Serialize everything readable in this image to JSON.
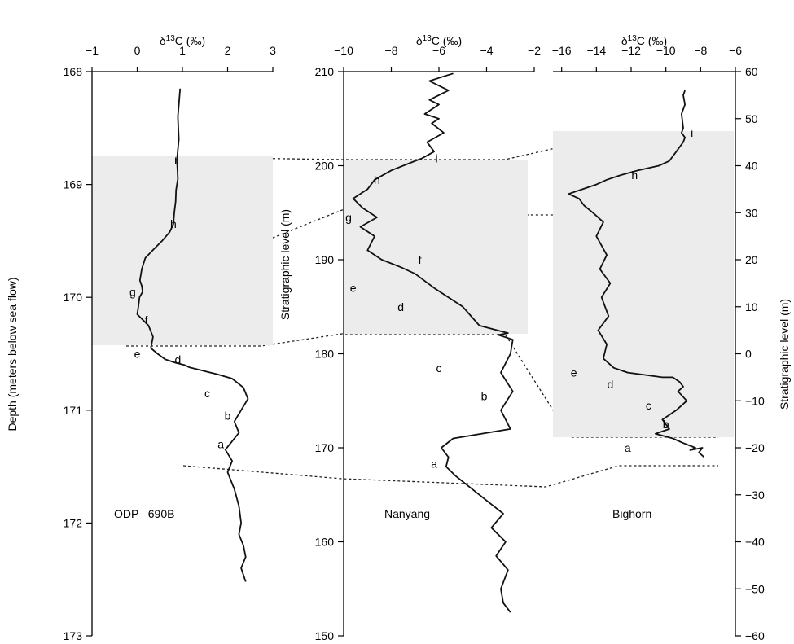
{
  "chart_data": [
    {
      "type": "line",
      "section_label": "ODP   690B",
      "xlabel": "δ13C (‰)",
      "ylabel": "Depth (meters below sea flow)",
      "xlim": [
        -1,
        3
      ],
      "ylim": [
        173,
        168
      ],
      "xticks": [
        -1,
        0,
        1,
        2,
        3
      ],
      "yticks": [
        168,
        169,
        170,
        171,
        172,
        173
      ],
      "band": [
        168.78,
        170.62
      ],
      "x": [
        0.95,
        0.9,
        0.92,
        0.88,
        0.9,
        0.86,
        0.85,
        0.82,
        0.8,
        0.72,
        0.55,
        0.35,
        0.18,
        0.1,
        0.06,
        0.1,
        0.12,
        0.05,
        0.02,
        0.0,
        0.25,
        0.35,
        0.3,
        0.45,
        0.62,
        0.85,
        1.05,
        1.15,
        1.45,
        1.75,
        2.1,
        2.35,
        2.45,
        2.3,
        2.15,
        2.25,
        2.05,
        1.95,
        2.1,
        2.0,
        2.15,
        2.25,
        2.3,
        2.25,
        2.35,
        2.4,
        2.3,
        2.4
      ],
      "y": [
        168.15,
        168.4,
        168.6,
        168.78,
        168.95,
        169.05,
        169.15,
        169.25,
        169.35,
        169.42,
        169.5,
        169.58,
        169.65,
        169.75,
        169.85,
        169.9,
        169.95,
        170.0,
        170.1,
        170.15,
        170.25,
        170.35,
        170.45,
        170.5,
        170.55,
        170.58,
        170.6,
        170.62,
        170.65,
        170.68,
        170.72,
        170.8,
        170.9,
        171.0,
        171.1,
        171.2,
        171.3,
        171.35,
        171.45,
        171.55,
        171.7,
        171.85,
        172.0,
        172.1,
        172.2,
        172.3,
        172.4,
        172.52
      ],
      "markers": [
        {
          "label": "i",
          "x": 0.85,
          "y": 168.78
        },
        {
          "label": "h",
          "x": 0.8,
          "y": 169.35
        },
        {
          "label": "g",
          "x": -0.1,
          "y": 169.95
        },
        {
          "label": "f",
          "x": 0.2,
          "y": 170.2
        },
        {
          "label": "e",
          "x": 0.0,
          "y": 170.5
        },
        {
          "label": "d",
          "x": 0.9,
          "y": 170.55
        },
        {
          "label": "c",
          "x": 1.55,
          "y": 170.85
        },
        {
          "label": "b",
          "x": 2.0,
          "y": 171.05
        },
        {
          "label": "a",
          "x": 1.85,
          "y": 171.3
        }
      ]
    },
    {
      "type": "line",
      "section_label": "Nanyang",
      "xlabel": "δ13C (‰)",
      "ylabel": "Stratigraphic level  (m)",
      "xlim": [
        -10,
        -2
      ],
      "ylim": [
        150,
        210
      ],
      "xticks": [
        -10,
        -8,
        -6,
        -4,
        -2
      ],
      "yticks": [
        150,
        160,
        170,
        180,
        190,
        200,
        210
      ],
      "band": [
        182,
        200.8
      ],
      "x": [
        -3.0,
        -3.3,
        -3.4,
        -3.1,
        -3.6,
        -3.2,
        -3.8,
        -3.3,
        -4.3,
        -4.8,
        -5.3,
        -5.7,
        -5.6,
        -5.9,
        -5.4,
        -3.0,
        -3.4,
        -2.9,
        -3.4,
        -3.0,
        -2.9,
        -3.5,
        -3.1,
        -4.3,
        -5.0,
        -6.2,
        -7.0,
        -7.6,
        -8.4,
        -9.0,
        -8.7,
        -9.3,
        -8.6,
        -9.2,
        -9.6,
        -9.0,
        -8.7,
        -8.0,
        -7.2,
        -6.7,
        -6.2,
        -6.5,
        -5.8,
        -6.3,
        -6.0,
        -6.6,
        -6.0,
        -6.4,
        -5.6,
        -6.4,
        -5.8,
        -5.4
      ],
      "y": [
        152.5,
        153.5,
        155,
        157,
        158.5,
        160,
        161.5,
        163,
        165,
        166,
        167,
        168,
        169,
        170,
        171,
        172,
        174,
        176,
        178,
        180,
        181.5,
        182,
        182.2,
        183,
        185,
        187,
        188.5,
        189.2,
        190,
        191,
        192.5,
        193.5,
        194.5,
        195.5,
        196.5,
        197.5,
        198.5,
        199.5,
        200.3,
        200.8,
        201.5,
        202.5,
        203.5,
        204.5,
        205,
        205.5,
        206.5,
        207,
        208,
        209,
        209.5,
        209.8
      ],
      "markers": [
        {
          "label": "i",
          "x": -6.1,
          "y": 200.8
        },
        {
          "label": "h",
          "x": -8.6,
          "y": 198.5
        },
        {
          "label": "g",
          "x": -10.0,
          "y": 194.5
        },
        {
          "label": "f",
          "x": -6.8,
          "y": 190.0
        },
        {
          "label": "e",
          "x": -9.6,
          "y": 187.0
        },
        {
          "label": "d",
          "x": -7.6,
          "y": 185.0
        },
        {
          "label": "c",
          "x": -6.0,
          "y": 178.5
        },
        {
          "label": "b",
          "x": -4.1,
          "y": 175.5
        },
        {
          "label": "a",
          "x": -6.2,
          "y": 168.3
        }
      ]
    },
    {
      "type": "line",
      "section_label": "Bighorn",
      "xlabel": "δ13C (‰)",
      "ylabel": "Stratigraphic level  (m)",
      "xlim": [
        -16.5,
        -6
      ],
      "ylim": [
        -60,
        60
      ],
      "xticks": [
        -16,
        -14,
        -12,
        -10,
        -8,
        -6
      ],
      "yticks": [
        -60,
        -50,
        -40,
        -30,
        -20,
        -10,
        0,
        10,
        20,
        30,
        40,
        50,
        60
      ],
      "band": [
        -8,
        47
      ],
      "x": [
        -7.8,
        -8.1,
        -7.9,
        -8.6,
        -8.3,
        -9.0,
        -9.6,
        -10.6,
        -9.8,
        -10.2,
        -9.4,
        -8.8,
        -9.3,
        -9.0,
        -9.2,
        -9.6,
        -10.2,
        -11.2,
        -12.2,
        -13.0,
        -13.6,
        -13.4,
        -13.9,
        -13.3,
        -13.7,
        -13.2,
        -13.8,
        -13.4,
        -14.0,
        -13.6,
        -14.2,
        -14.7,
        -15.0,
        -15.6,
        -14.8,
        -14.0,
        -13.4,
        -12.6,
        -11.6,
        -10.4,
        -9.8,
        -9.6,
        -9.4,
        -9.2,
        -9.0,
        -8.9,
        -9.1,
        -9.0,
        -9.1,
        -8.9,
        -9.0,
        -8.9
      ],
      "y": [
        -22,
        -21,
        -20,
        -20.5,
        -20,
        -19,
        -18,
        -17,
        -16,
        -14,
        -12,
        -10,
        -8,
        -7,
        -6,
        -5,
        -5,
        -4.5,
        -4,
        -3,
        -1,
        2,
        5,
        8,
        12,
        15,
        18,
        21,
        25,
        28,
        30,
        31.5,
        33,
        34,
        35,
        36,
        37,
        38,
        39,
        40,
        41,
        42,
        43,
        44,
        45,
        46,
        47,
        48,
        51,
        53,
        55,
        56
      ],
      "markers": [
        {
          "label": "i",
          "x": -8.5,
          "y": 47
        },
        {
          "label": "h",
          "x": -11.8,
          "y": 38
        },
        {
          "label": "e",
          "x": -15.3,
          "y": -4
        },
        {
          "label": "d",
          "x": -13.2,
          "y": -6.5
        },
        {
          "label": "c",
          "x": -11.0,
          "y": -11
        },
        {
          "label": "b",
          "x": -10.0,
          "y": -15
        },
        {
          "label": "a",
          "x": -12.2,
          "y": -20
        }
      ]
    }
  ]
}
